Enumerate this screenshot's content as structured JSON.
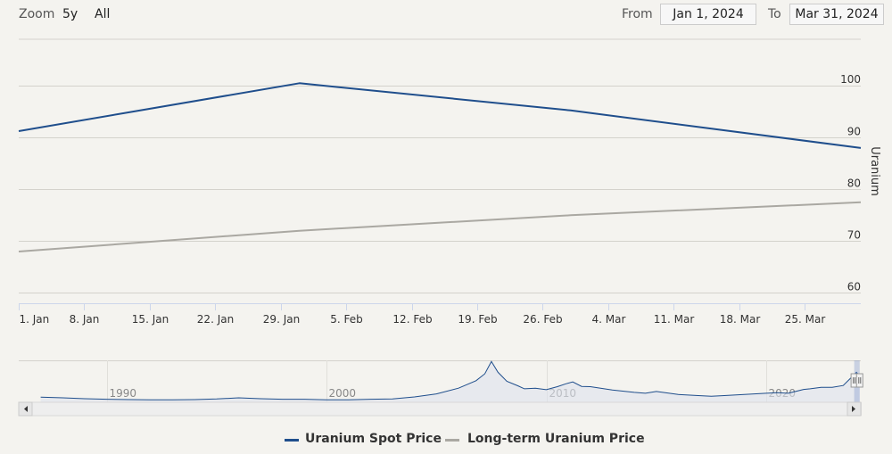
{
  "toolbar": {
    "zoom_label": "Zoom",
    "zoom_options": [
      "5y",
      "All"
    ],
    "from_label": "From",
    "from_value": "Jan 1, 2024",
    "to_label": "To",
    "to_value": "Mar 31, 2024"
  },
  "chart_data": {
    "type": "line",
    "ylabel": "Uranium",
    "ylim": [
      58,
      109
    ],
    "yticks": [
      60,
      70,
      80,
      90,
      100
    ],
    "xlim": [
      "2024-01-01",
      "2024-03-31"
    ],
    "xticks": [
      {
        "date": "2024-01-01",
        "label": "1. Jan"
      },
      {
        "date": "2024-01-08",
        "label": "8. Jan"
      },
      {
        "date": "2024-01-15",
        "label": "15. Jan"
      },
      {
        "date": "2024-01-22",
        "label": "22. Jan"
      },
      {
        "date": "2024-01-29",
        "label": "29. Jan"
      },
      {
        "date": "2024-02-05",
        "label": "5. Feb"
      },
      {
        "date": "2024-02-12",
        "label": "12. Feb"
      },
      {
        "date": "2024-02-19",
        "label": "19. Feb"
      },
      {
        "date": "2024-02-26",
        "label": "26. Feb"
      },
      {
        "date": "2024-03-04",
        "label": "4. Mar"
      },
      {
        "date": "2024-03-11",
        "label": "11. Mar"
      },
      {
        "date": "2024-03-18",
        "label": "18. Mar"
      },
      {
        "date": "2024-03-25",
        "label": "25. Mar"
      }
    ],
    "grid": true,
    "legend_position": "bottom",
    "series": [
      {
        "name": "Uranium Spot Price",
        "color": "#1f4e8c",
        "points": [
          {
            "x": "2024-01-01",
            "y": 91.25
          },
          {
            "x": "2024-01-31",
            "y": 100.5
          },
          {
            "x": "2024-02-29",
            "y": 95.25
          },
          {
            "x": "2024-03-31",
            "y": 88
          }
        ]
      },
      {
        "name": "Long-term Uranium Price",
        "color": "#aaa8a2",
        "points": [
          {
            "x": "2024-01-01",
            "y": 68
          },
          {
            "x": "2024-01-31",
            "y": 72
          },
          {
            "x": "2024-02-29",
            "y": 75
          },
          {
            "x": "2024-03-31",
            "y": 77.5
          }
        ]
      }
    ],
    "navigator": {
      "xlim": [
        1986,
        2024.3
      ],
      "tick_labels": [
        "1990",
        "2000",
        "2010",
        "2020"
      ],
      "tick_years": [
        1990,
        2000,
        2010,
        2020
      ],
      "series_color": "#1f4e8c",
      "fill_color": "#dde3ec",
      "ylim": [
        0,
        140
      ],
      "points": [
        [
          1987,
          17
        ],
        [
          1988,
          15
        ],
        [
          1989,
          12
        ],
        [
          1990,
          10
        ],
        [
          1991,
          9
        ],
        [
          1992,
          8
        ],
        [
          1993,
          8
        ],
        [
          1994,
          9
        ],
        [
          1995,
          11
        ],
        [
          1996,
          15
        ],
        [
          1997,
          12
        ],
        [
          1998,
          10
        ],
        [
          1999,
          10
        ],
        [
          2000,
          8
        ],
        [
          2001,
          8
        ],
        [
          2002,
          10
        ],
        [
          2003,
          11
        ],
        [
          2004,
          18
        ],
        [
          2005,
          28
        ],
        [
          2006,
          47
        ],
        [
          2006.8,
          72
        ],
        [
          2007.2,
          95
        ],
        [
          2007.5,
          136
        ],
        [
          2007.8,
          100
        ],
        [
          2008.2,
          70
        ],
        [
          2008.7,
          55
        ],
        [
          2009,
          45
        ],
        [
          2009.5,
          47
        ],
        [
          2010,
          42
        ],
        [
          2010.5,
          52
        ],
        [
          2010.9,
          62
        ],
        [
          2011.2,
          68
        ],
        [
          2011.6,
          53
        ],
        [
          2012,
          52
        ],
        [
          2013,
          41
        ],
        [
          2014,
          33
        ],
        [
          2014.5,
          30
        ],
        [
          2015,
          36
        ],
        [
          2016,
          26
        ],
        [
          2017,
          22
        ],
        [
          2017.5,
          20
        ],
        [
          2018,
          22
        ],
        [
          2019,
          26
        ],
        [
          2020,
          30
        ],
        [
          2020.5,
          32
        ],
        [
          2021,
          30
        ],
        [
          2021.7,
          43
        ],
        [
          2022,
          45
        ],
        [
          2022.5,
          50
        ],
        [
          2023,
          50
        ],
        [
          2023.5,
          56
        ],
        [
          2023.9,
          85
        ],
        [
          2024.1,
          100
        ],
        [
          2024.25,
          88
        ]
      ]
    }
  },
  "navigator": {
    "scroll_left_icon": "chevron-left-icon",
    "scroll_right_icon": "chevron-right-icon"
  },
  "legend": {
    "spot_label": "Uranium Spot Price",
    "lt_label": "Long-term Uranium Price",
    "spot_color": "#1f4e8c",
    "lt_color": "#aaa8a2"
  }
}
